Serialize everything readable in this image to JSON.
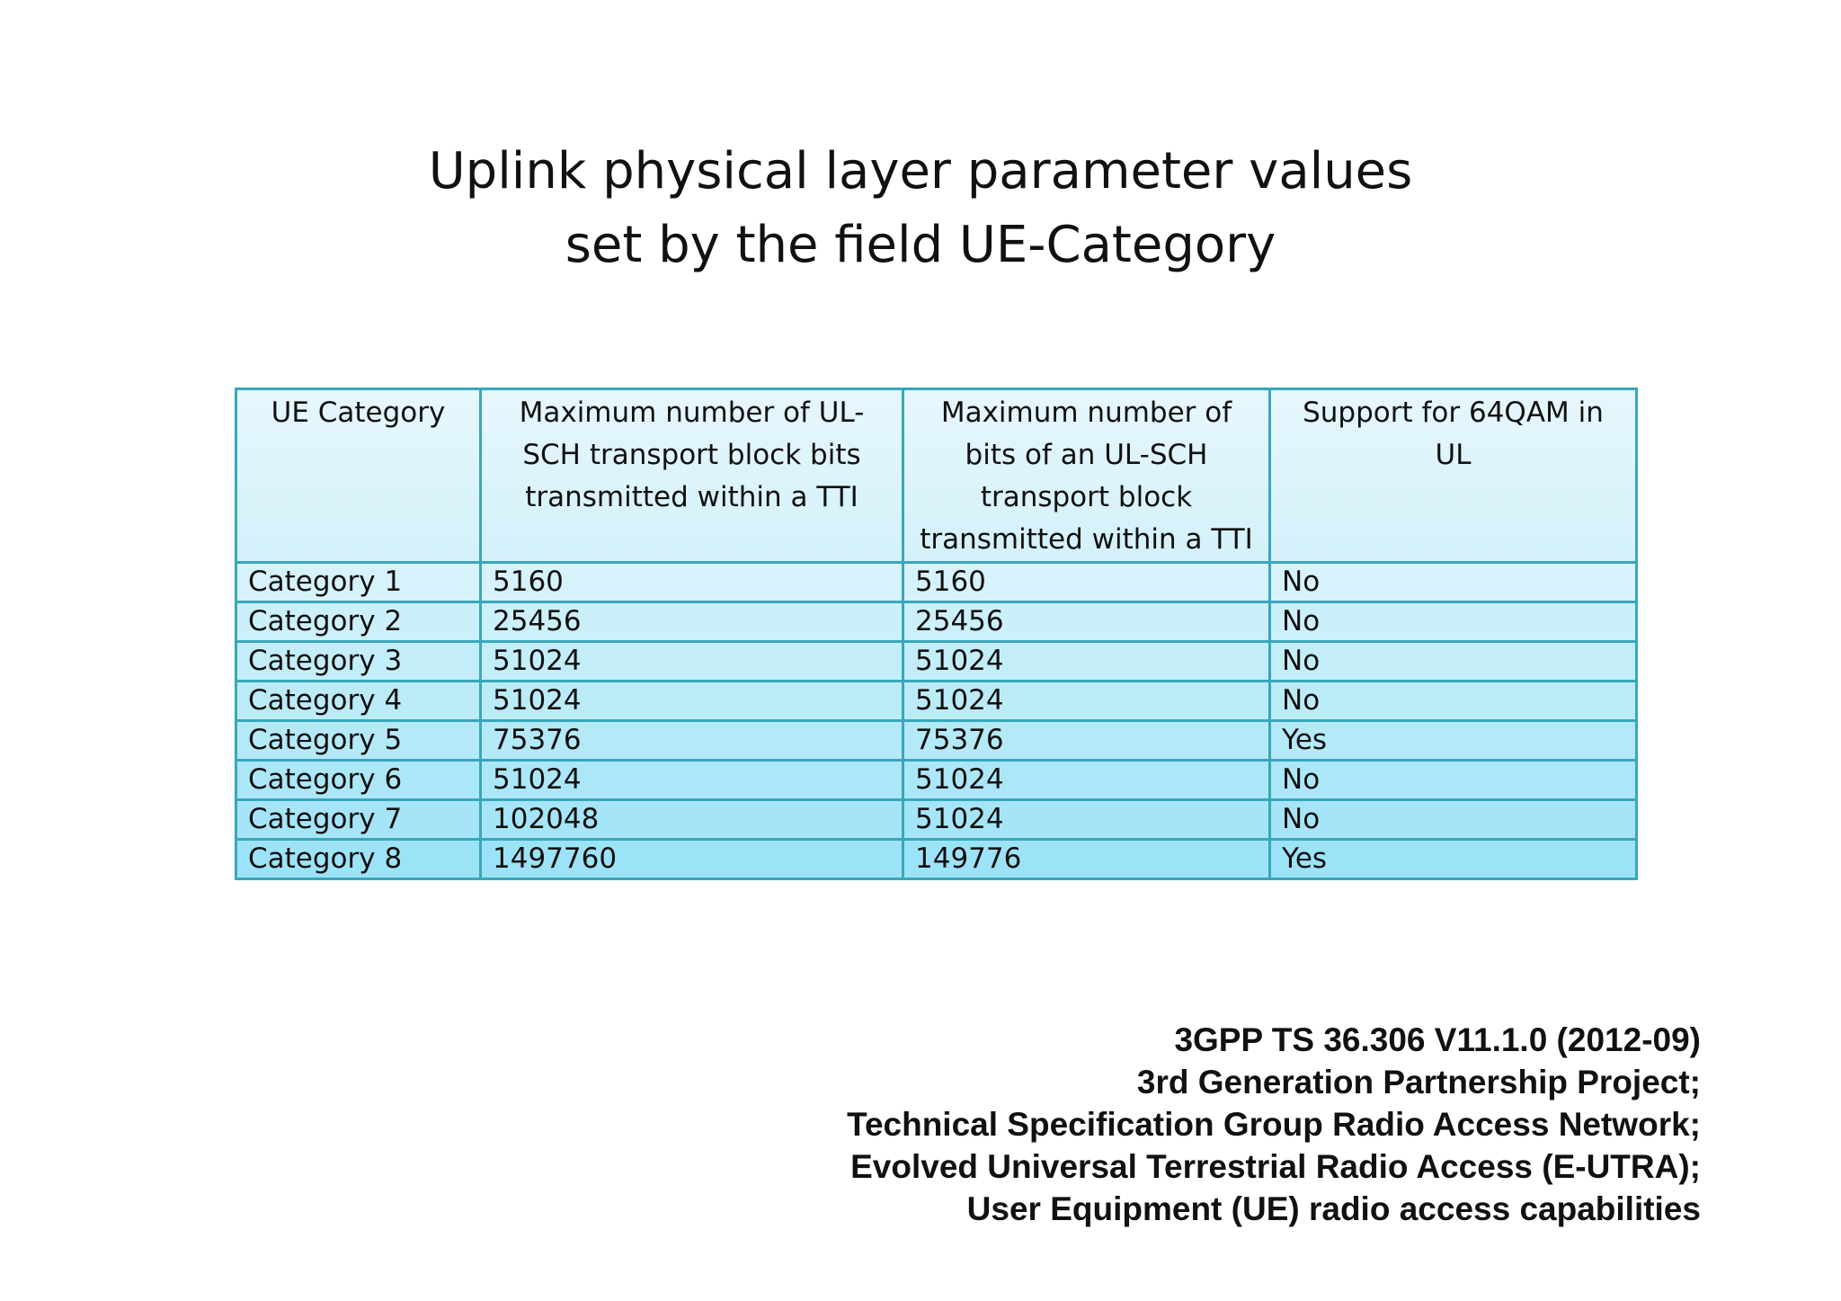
{
  "title": {
    "line1": "Uplink physical layer parameter values",
    "line2": "set by the field UE-Category"
  },
  "table": {
    "headers": [
      "UE Category",
      "Maximum number of UL-SCH transport block bits transmitted within a TTI",
      "Maximum number of bits of an UL-SCH transport block transmitted within a TTI",
      "Support for 64QAM in UL"
    ],
    "rows": [
      [
        "Category 1",
        "5160",
        "5160",
        "No"
      ],
      [
        "Category 2",
        "25456",
        "25456",
        "No"
      ],
      [
        "Category 3",
        "51024",
        "51024",
        "No"
      ],
      [
        "Category 4",
        "51024",
        "51024",
        "No"
      ],
      [
        "Category 5",
        "75376",
        "75376",
        "Yes"
      ],
      [
        "Category 6",
        "51024",
        "51024",
        "No"
      ],
      [
        "Category 7",
        "102048",
        "51024",
        "No"
      ],
      [
        "Category 8",
        "1497760",
        "149776",
        "Yes"
      ]
    ]
  },
  "citation": {
    "lines": [
      "3GPP TS 36.306 V11.1.0 (2012-09)",
      "3rd Generation Partnership Project;",
      "Technical Specification Group Radio Access Network;",
      "Evolved Universal Terrestrial Radio Access (E-UTRA);",
      "User Equipment (UE) radio access capabilities"
    ]
  },
  "colors": {
    "table_border": "#3aa6bb",
    "header_fill": "#e6f7fc",
    "row_fill_top": "#d6f2fb",
    "row_fill_bottom": "#9de3f7"
  }
}
